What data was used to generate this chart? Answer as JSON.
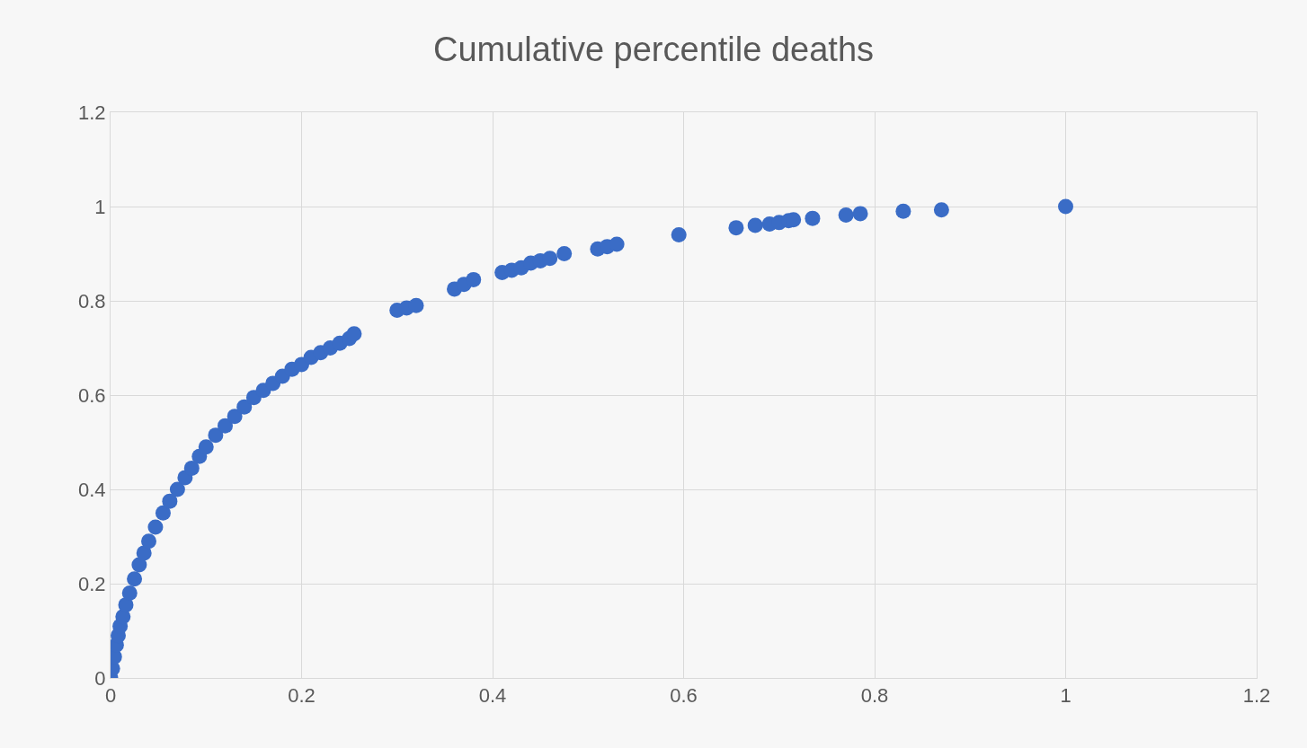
{
  "chart_data": {
    "type": "scatter",
    "title": "Cumulative percentile deaths",
    "x": [
      0,
      0.002,
      0.004,
      0.006,
      0.008,
      0.01,
      0.013,
      0.016,
      0.02,
      0.025,
      0.03,
      0.035,
      0.04,
      0.047,
      0.055,
      0.062,
      0.07,
      0.078,
      0.085,
      0.093,
      0.1,
      0.11,
      0.12,
      0.13,
      0.14,
      0.15,
      0.16,
      0.17,
      0.18,
      0.19,
      0.2,
      0.21,
      0.22,
      0.23,
      0.24,
      0.25,
      0.255,
      0.3,
      0.31,
      0.32,
      0.36,
      0.37,
      0.38,
      0.41,
      0.42,
      0.43,
      0.44,
      0.45,
      0.46,
      0.475,
      0.51,
      0.52,
      0.53,
      0.595,
      0.655,
      0.675,
      0.69,
      0.7,
      0.71,
      0.715,
      0.735,
      0.77,
      0.785,
      0.83,
      0.87,
      1
    ],
    "series": [
      {
        "color": "#3a6cc6",
        "values": [
          0,
          0.02,
          0.045,
          0.07,
          0.09,
          0.11,
          0.13,
          0.155,
          0.18,
          0.21,
          0.24,
          0.265,
          0.29,
          0.32,
          0.35,
          0.375,
          0.4,
          0.425,
          0.445,
          0.47,
          0.49,
          0.515,
          0.535,
          0.555,
          0.575,
          0.595,
          0.61,
          0.625,
          0.64,
          0.655,
          0.665,
          0.68,
          0.69,
          0.7,
          0.71,
          0.72,
          0.73,
          0.78,
          0.785,
          0.79,
          0.825,
          0.835,
          0.845,
          0.86,
          0.865,
          0.87,
          0.88,
          0.885,
          0.89,
          0.9,
          0.91,
          0.915,
          0.92,
          0.94,
          0.955,
          0.96,
          0.963,
          0.966,
          0.97,
          0.972,
          0.975,
          0.982,
          0.985,
          0.99,
          0.993,
          1
        ]
      }
    ],
    "xlim": [
      0,
      1.2
    ],
    "xticks": [
      0,
      0.2,
      0.4,
      0.6,
      0.8,
      1,
      1.2
    ],
    "ylim": [
      0,
      1.2
    ],
    "yticks": [
      0,
      0.2,
      0.4,
      0.6,
      0.8,
      1,
      1.2
    ],
    "grid": true,
    "marker": "circle"
  }
}
